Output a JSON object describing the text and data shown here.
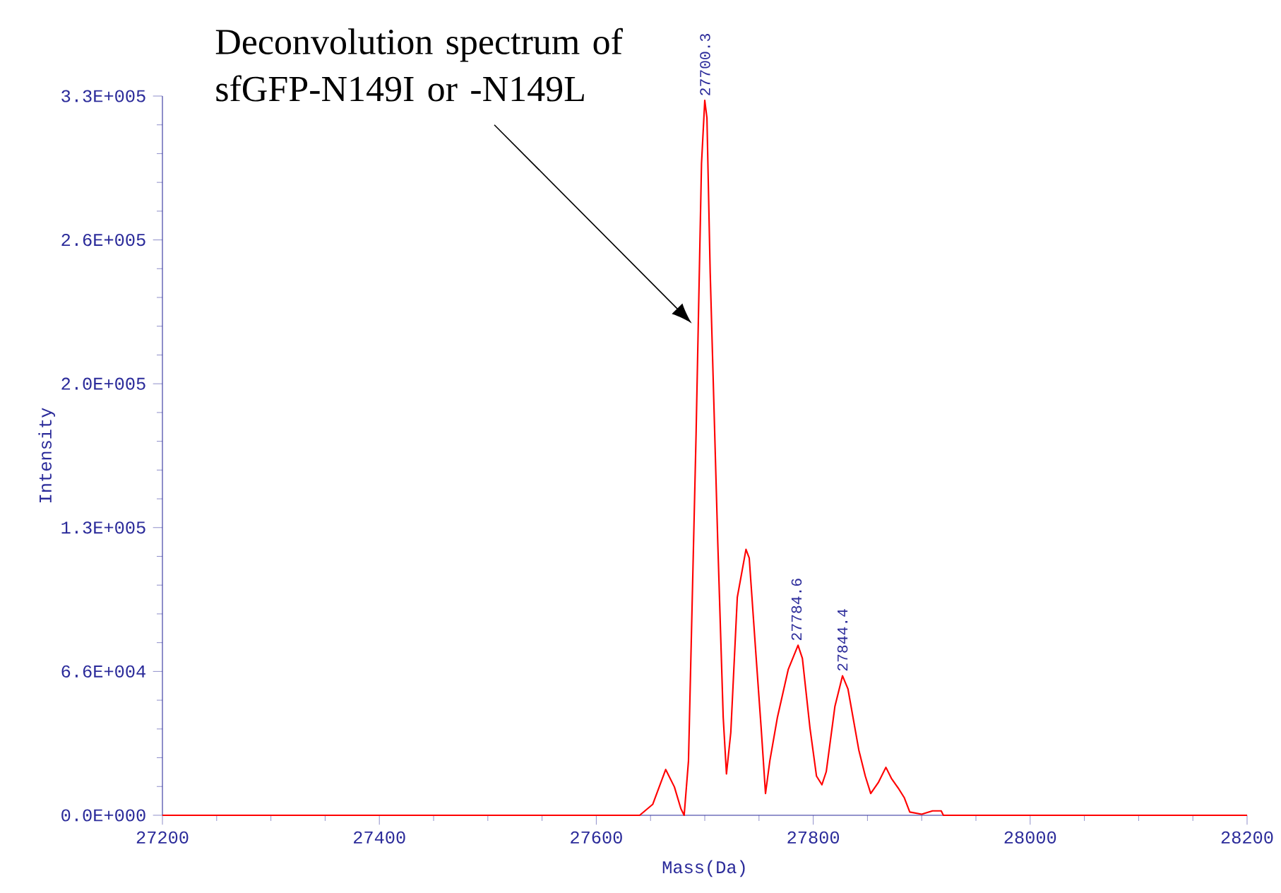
{
  "chart_data": {
    "type": "line",
    "xlabel": "Mass(Da)",
    "ylabel": "Intensity",
    "annotations": [
      "Deconvolution spectrum of sfGFP-N149I or -N149L",
      {
        "text": "27700.3",
        "x": 27700.3,
        "y": 328000
      },
      {
        "text": "27784.6",
        "x": 27784.6,
        "y": 78000
      },
      {
        "text": "27844.4",
        "x": 27827,
        "y": 64000
      }
    ],
    "xlim": [
      27200,
      28200
    ],
    "xticks": [
      27200,
      27400,
      27600,
      27800,
      28000,
      28200
    ],
    "ylim": [
      0,
      330000
    ],
    "yticks": [
      {
        "value": 0,
        "label": "0.0E+000"
      },
      {
        "value": 66000,
        "label": "6.6E+004"
      },
      {
        "value": 132000,
        "label": "1.3E+005"
      },
      {
        "value": 198000,
        "label": "2.0E+005"
      },
      {
        "value": 264000,
        "label": "2.6E+005"
      },
      {
        "value": 330000,
        "label": "3.3E+005"
      }
    ],
    "grid": false,
    "marker": "none",
    "line_style": "solid",
    "series": [
      {
        "color": "#ff0000",
        "x": [
          27200,
          27640,
          27652,
          27664,
          27672,
          27678,
          27681,
          27685,
          27692,
          27697,
          27700,
          27702,
          27705,
          27712,
          27717,
          27720,
          27724,
          27730,
          27738,
          27741,
          27747,
          27752,
          27756,
          27760,
          27767,
          27777,
          27786,
          27790,
          27797,
          27803,
          27808,
          27812,
          27820,
          27827,
          27832,
          27842,
          27848,
          27853,
          27860,
          27867,
          27872,
          27879,
          27884,
          27889,
          27900,
          27910,
          27918,
          27920,
          28200
        ],
        "values": [
          0,
          0,
          5000,
          21000,
          13000,
          3000,
          0,
          25000,
          175000,
          299000,
          328000,
          320000,
          249000,
          125000,
          45000,
          19000,
          38000,
          100000,
          122000,
          118000,
          75000,
          40000,
          10000,
          25000,
          45000,
          67000,
          78000,
          72000,
          40000,
          18000,
          14000,
          20000,
          50000,
          64000,
          58000,
          30000,
          18000,
          10000,
          15000,
          22000,
          17000,
          12000,
          8000,
          1500,
          500,
          2000,
          2000,
          0,
          0
        ]
      }
    ]
  }
}
